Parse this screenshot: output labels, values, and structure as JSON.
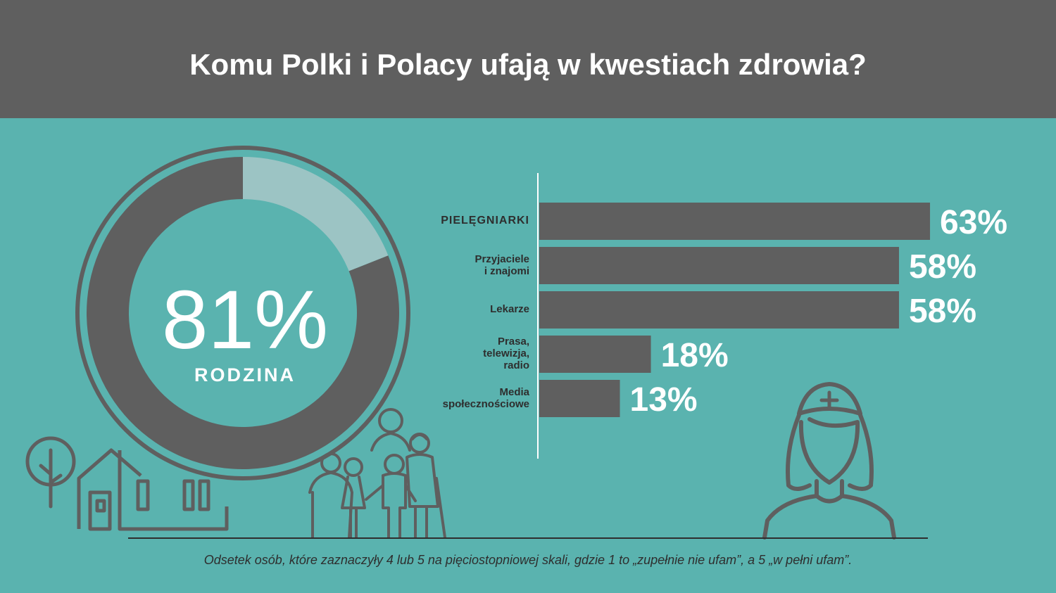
{
  "title": "Komu Polki i Polacy ufają w kwestiach zdrowia?",
  "colors": {
    "header": "#5f5f5f",
    "background": "#5ab3af",
    "bar": "#5f5f5f",
    "donut_dark": "#5f5f5f",
    "donut_light": "#9cc4c4",
    "text_light": "#ffffff",
    "text_dark": "#2e2e2e"
  },
  "icons": [
    "donut-ring",
    "tree-icon",
    "house-icon",
    "family-icon",
    "nurse-icon"
  ],
  "donut": {
    "value": 81,
    "value_label": "81%",
    "label": "RODZINA"
  },
  "chart_data": {
    "type": "bar",
    "orientation": "horizontal",
    "categories": [
      "PIELĘGNIARKI",
      "Przyjaciele\ni znajomi",
      "Lekarze",
      "Prasa,\ntelewizja,\nradio",
      "Media\nspołecznościowe"
    ],
    "values": [
      63,
      58,
      58,
      18,
      13
    ],
    "value_labels": [
      "63%",
      "58%",
      "58%",
      "18%",
      "13%"
    ],
    "xlim": [
      0,
      100
    ],
    "grid": false
  },
  "footnote": "Odsetek osób, które zaznaczyły 4 lub 5 na pięciostopniowej skali, gdzie 1 to „zupełnie nie ufam”, a 5 „w pełni ufam”."
}
